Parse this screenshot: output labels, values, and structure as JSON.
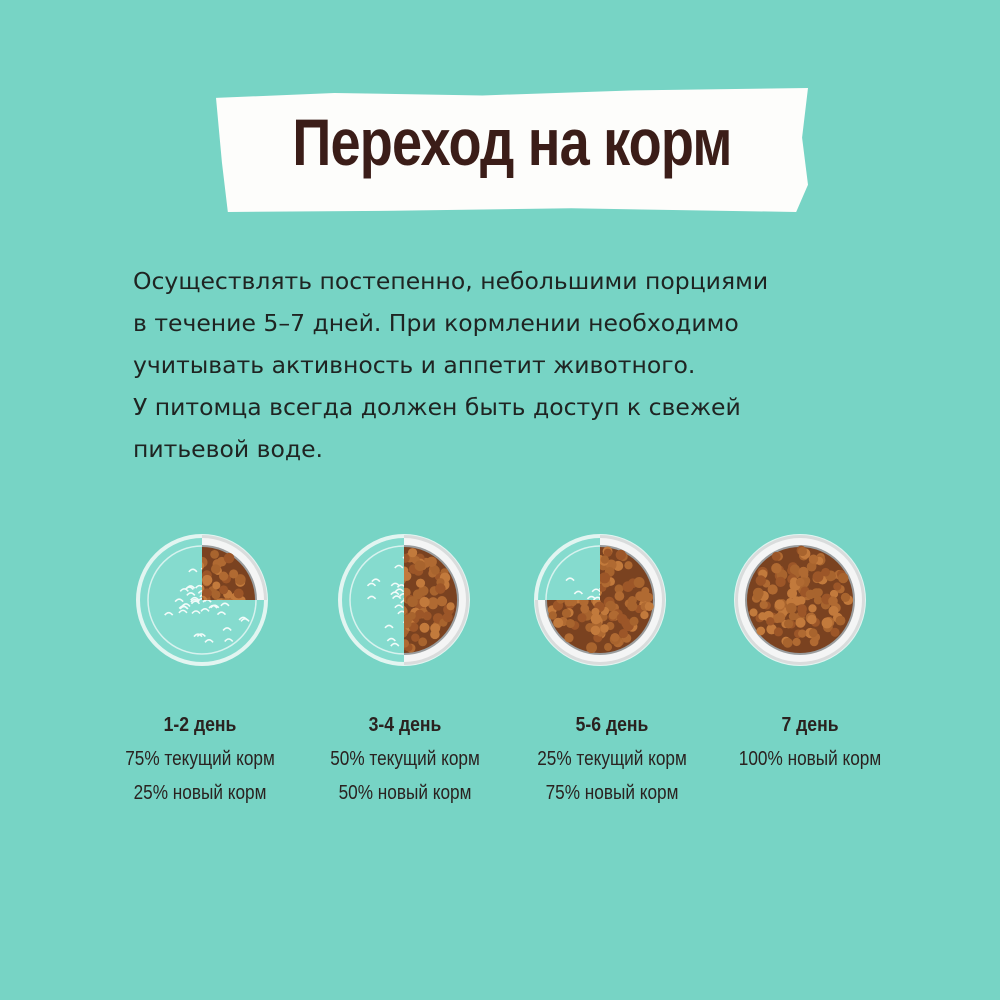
{
  "title": "Переход на корм",
  "description": [
    "Осуществлять постепенно, небольшими порциями",
    "в течение 5–7 дней. При кормлении необходимо",
    "учитывать активность и аппетит животного.",
    "У питомца всегда должен быть доступ к свежей",
    "питьевой воде."
  ],
  "colors": {
    "background": "#77d4c5",
    "title": "#3b1d18",
    "banner": "#fdfdfb",
    "kibble": "#a8642e"
  },
  "stages": [
    {
      "day": "1-2 день",
      "lines": [
        "75% текущий корм",
        "25% новый корм"
      ],
      "new_food_fraction": 0.25
    },
    {
      "day": "3-4 день",
      "lines": [
        "50% текущий корм",
        "50% новый корм"
      ],
      "new_food_fraction": 0.5
    },
    {
      "day": "5-6 день",
      "lines": [
        "25% текущий корм",
        "75% новый корм"
      ],
      "new_food_fraction": 0.75
    },
    {
      "day": "7 день",
      "lines": [
        "100% новый корм"
      ],
      "new_food_fraction": 1.0
    }
  ]
}
